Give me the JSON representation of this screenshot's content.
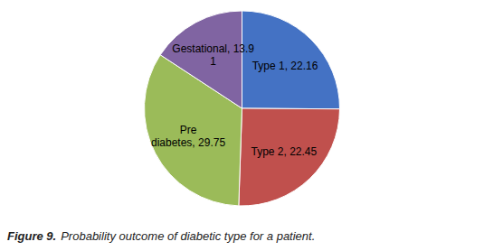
{
  "chart_data": {
    "type": "pie",
    "categories": [
      "Type 1, 22.16",
      "Type 2, 22.45",
      "Pre\ndiabetes, 29.75",
      "Gestational, 13.9\n1"
    ],
    "values": [
      22.16,
      22.45,
      29.75,
      13.91
    ],
    "colors": [
      "#4472C4",
      "#C0504D",
      "#9BBB59",
      "#8064A2"
    ],
    "annotations": [
      "Figure 9.",
      "Probability outcome of diabetic type for a patient."
    ]
  }
}
